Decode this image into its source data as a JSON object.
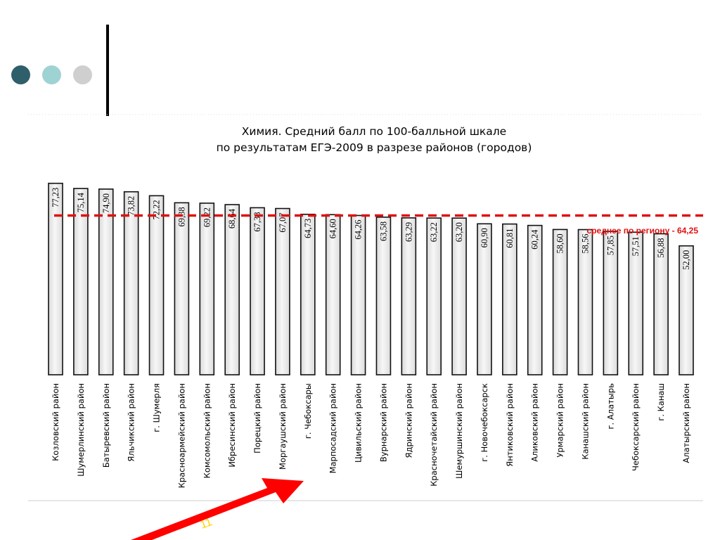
{
  "slide": {
    "page_number": "11",
    "colors": {
      "dot1": "#2f5f6a",
      "dot2": "#9fd3d3",
      "dot3": "#cfcfcf",
      "arrow": "#ff0000",
      "page_number": "#ffd200"
    },
    "icons": [
      "bullet-dot-icon",
      "arrow-icon"
    ]
  },
  "chart_data": {
    "type": "bar",
    "title": [
      "Химия. Средний балл по 100-балльной шкале",
      "по результатам ЕГЭ-2009 в разрезе районов (городов)"
    ],
    "categories": [
      "Козловский район",
      "Шумерлинский район",
      "Батыревский район",
      "Яльчикский район",
      "г. Шумерля",
      "Красноармейский район",
      "Комсомольский район",
      "Ибресинский район",
      "Порецкий район",
      "Моргаушский район",
      "г. Чебоксары",
      "Марпосадский район",
      "Цивильский район",
      "Вурнарский район",
      "Ядринский район",
      "Красночетайский район",
      "Шемуршинский район",
      "г. Новочебоксарск",
      "Янтиковский район",
      "Аликовский район",
      "Урмарский район",
      "Канашский район",
      "г. Алатырь",
      "Чебоксарский район",
      "г. Канаш",
      "Алатырский район"
    ],
    "values": [
      77.23,
      75.14,
      74.9,
      73.82,
      72.22,
      69.38,
      69.22,
      68.64,
      67.38,
      67.07,
      64.73,
      64.6,
      64.26,
      63.58,
      63.29,
      63.22,
      63.2,
      60.9,
      60.81,
      60.24,
      58.6,
      58.56,
      57.85,
      57.51,
      56.88,
      52.0
    ],
    "value_labels": [
      "77,23",
      "75,14",
      "74,90",
      "73,82",
      "72,22",
      "69,38",
      "69,22",
      "68,64",
      "67,38",
      "67,07",
      "64,73",
      "64,60",
      "64,26",
      "63,58",
      "63,29",
      "63,22",
      "63,20",
      "60,90",
      "60,81",
      "60,24",
      "58,60",
      "58,56",
      "57,85",
      "57,51",
      "56,88",
      "52,00"
    ],
    "reference_line": {
      "value": 64.25,
      "label": "среднее по региону - 64,25",
      "color": "#e01010",
      "style": "dashed"
    },
    "ylim": [
      0,
      78
    ],
    "grid": false,
    "legend": "none",
    "bar_fill": "#ececec",
    "bar_stroke": "#111111"
  }
}
